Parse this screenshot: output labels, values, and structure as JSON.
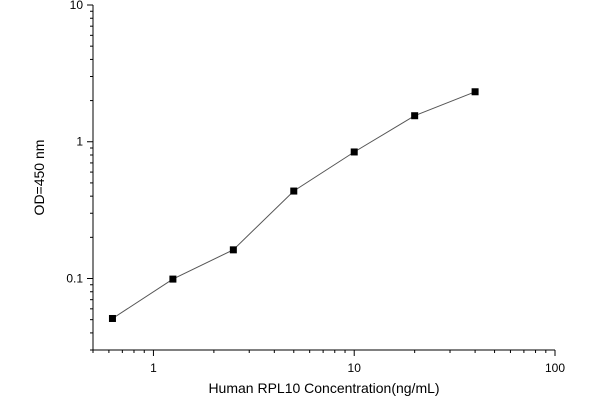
{
  "chart_data": {
    "type": "scatter",
    "xscale": "log",
    "yscale": "log",
    "xlim": [
      0.5,
      100
    ],
    "ylim": [
      0.03,
      10
    ],
    "xticks": [
      {
        "value": 1,
        "label": "1"
      },
      {
        "value": 10,
        "label": "10"
      },
      {
        "value": 100,
        "label": "100"
      }
    ],
    "yticks": [
      {
        "value": 0.1,
        "label": "0.1"
      },
      {
        "value": 1,
        "label": "1"
      },
      {
        "value": 10,
        "label": "10"
      }
    ],
    "xlabel": "Human RPL10 Concentration(ng/mL)",
    "ylabel": "OD=450 nm",
    "grid": false,
    "series": [
      {
        "x": [
          0.625,
          1.25,
          2.5,
          5,
          10,
          20,
          40
        ],
        "y": [
          0.051,
          0.099,
          0.162,
          0.436,
          0.842,
          1.55,
          2.32
        ],
        "marker": "square",
        "color": "#000000"
      }
    ]
  }
}
